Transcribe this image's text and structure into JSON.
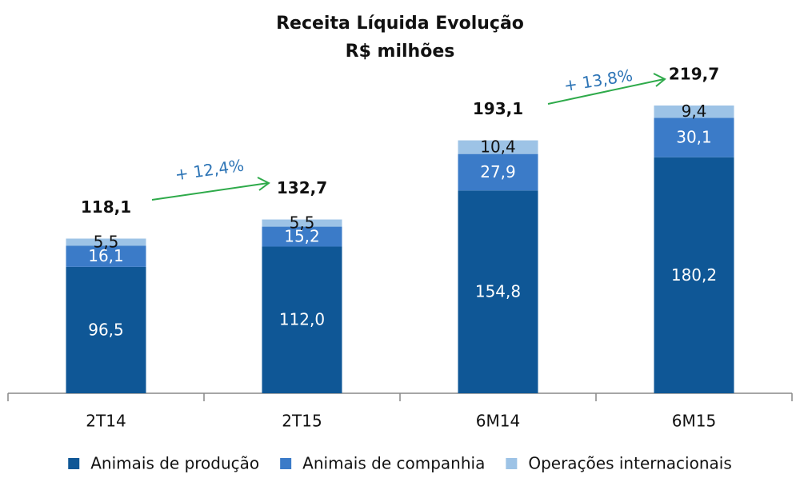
{
  "chart_data": {
    "type": "stacked_bar",
    "title": "Receita Líquida  Evolução",
    "subtitle": "R$ milhões",
    "categories": [
      "2T14",
      "2T15",
      "6M14",
      "6M15"
    ],
    "series": [
      {
        "name": "Animais de produção",
        "color": "#0f5796",
        "values": [
          96.5,
          112.0,
          154.8,
          180.2
        ],
        "value_labels": [
          "96,5",
          "112,0",
          "154,8",
          "180,2"
        ]
      },
      {
        "name": "Animais de companhia",
        "color": "#3b7bc8",
        "values": [
          16.1,
          15.2,
          27.9,
          30.1
        ],
        "value_labels": [
          "16,1",
          "15,2",
          "27,9",
          "30,1"
        ]
      },
      {
        "name": "Operações internacionais",
        "color": "#9dc3e6",
        "values": [
          5.5,
          5.5,
          10.4,
          9.4
        ],
        "value_labels": [
          "5,5",
          "5,5",
          "10,4",
          "9,4"
        ]
      }
    ],
    "totals": [
      118.1,
      132.7,
      193.1,
      219.7
    ],
    "total_labels": [
      "118,1",
      "132,7",
      "193,1",
      "219,7"
    ],
    "annotations": [
      "+ 12,4%",
      "+ 13,8%"
    ],
    "legend": "bottom"
  }
}
